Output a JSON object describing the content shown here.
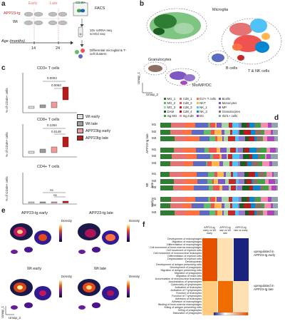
{
  "panels": {
    "a": "a",
    "b": "b",
    "c": "c",
    "d": "d",
    "e": "e",
    "f": "f"
  },
  "panel_a": {
    "early": "Early",
    "late": "Late",
    "app": "APP23-tg",
    "wt": "Wt",
    "age_label": "Age (months)",
    "age_14": "14",
    "age_24": "24",
    "facs_title": "FACS",
    "facs_badge": "CD45+",
    "seq": "10x scRNA seq scVDJ seq",
    "diff": "Differential microglial & T-cell clusters"
  },
  "panel_b": {
    "microglia": "Microglia",
    "granulocytes": "Granulocytes",
    "mo": "Mo/MP/DC",
    "bcells": "B cells",
    "tnk": "T & NK cells",
    "umap1": "Umap_1",
    "umap2": "Umap_2",
    "legend": [
      {
        "label": "MG_1",
        "color": "#2e7d32"
      },
      {
        "label": "Cd8_1",
        "color": "#e57373"
      },
      {
        "label": "Il17+ T cells",
        "color": "#ff7043"
      },
      {
        "label": "Bcells",
        "color": "#5c6bc0"
      },
      {
        "label": "MG_2",
        "color": "#66bb6a"
      },
      {
        "label": "Cd8_2",
        "color": "#ef5350"
      },
      {
        "label": "NKT",
        "color": "#ffb74d"
      },
      {
        "label": "Monocytes",
        "color": "#7e57c2"
      },
      {
        "label": "MG_3",
        "color": "#a5d6a7"
      },
      {
        "label": "Cd8_3",
        "color": "#c62828"
      },
      {
        "label": "NK_1",
        "color": "#4fc3f7"
      },
      {
        "label": "MP",
        "color": "#9575cd"
      },
      {
        "label": "DAM",
        "color": "#1b5e20"
      },
      {
        "label": "Cd8_4",
        "color": "#b71c1c"
      },
      {
        "label": "NK_2",
        "color": "#0288d1"
      },
      {
        "label": "Granulocytes",
        "color": "#8d6e63"
      },
      {
        "label": "Isg MG",
        "color": "#43a047"
      },
      {
        "label": "Isg Cd8",
        "color": "#f48fb1"
      },
      {
        "label": "DC",
        "color": "#ab47bc"
      },
      {
        "label": "Il1rl1+ cells",
        "color": "#90a4ae"
      }
    ]
  },
  "panel_c": {
    "title1": "CD3+ T cells",
    "title2": "CD8+ T cells",
    "title3": "CD4+ T cells",
    "ylabel": "% of CD45+ cells",
    "p1a": "0.0003",
    "p1b": "0.0063",
    "p2a": "0.1264",
    "p2b": "0.0148",
    "ns1": "ns",
    "ns2": "ns",
    "ticks1": [
      "0",
      "5",
      "10",
      "15",
      "20",
      "25"
    ],
    "ticks2": [
      "0",
      "5",
      "10",
      "15"
    ],
    "ticks3": [
      "0.000",
      "0.005",
      "0.010",
      "0.015"
    ],
    "legend": [
      {
        "label": "Wt early",
        "color": "#e0e0e0"
      },
      {
        "label": "Wt late",
        "color": "#9e9e9e"
      },
      {
        "label": "APP23tg early",
        "color": "#ef9a9a"
      },
      {
        "label": "APP23tg late",
        "color": "#b71c1c"
      }
    ]
  },
  "panel_d": {
    "group_app_late": "APP23-tg late",
    "group_app_early": "early",
    "group_wt_late": "late",
    "group_wt_early": "early",
    "wt": "Wt",
    "rows": [
      "M1",
      "M2",
      "M3",
      "M1",
      "M2",
      "M3",
      "M1",
      "M2",
      "M3",
      "M1",
      "M2",
      "M3"
    ]
  },
  "panel_e": {
    "app_early": "APP23-tg early",
    "app_late": "APP23-tg late",
    "wt_early": "Wt early",
    "wt_late": "Wt late",
    "density": "Density",
    "umap1": "Umap_1",
    "umap2": "Umap_2",
    "ticks_a": [
      "0.010",
      "0.005"
    ],
    "ticks_b": [
      "0.005",
      "0.004",
      "0.003",
      "0.002",
      "0.001"
    ],
    "ticks_c": [
      "0.0150",
      "0.0100",
      "0.0050",
      "0.0025"
    ],
    "ticks_d": [
      "0.005",
      "0.004",
      "0.003",
      "0.002"
    ]
  },
  "panel_f": {
    "col1": "APP23-tg early vs Wt early",
    "col2": "APP23-tg late vs Wt late",
    "col3": "APP23-tg late vs early",
    "upreg_early": "upregulated in APP23-tg early",
    "upreg_late": "upregulated in APP23-tg late",
    "scale": [
      "-1",
      "0",
      "1",
      "2"
    ],
    "terms": [
      "Development of macrophages",
      "Migration of macrophages",
      "Differentiation of macrophages",
      "Cell movement of bone-marrow macrophages",
      "Cell movement of myeloid cells",
      "Cell movement of mononuclear leukocytes",
      "Differentiation of myeloid cells",
      "Degranulation of myeloid cells",
      "Dendropoiesis",
      "Development of antigen presenting cells",
      "Development of phagocytes",
      "Migration of antigen presenting cells",
      "Migration of phagocytes",
      "Migration of mast cells",
      "Accumulation of mononuclear leukocytes",
      "Accumulation of lymphocytes",
      "Cytotoxicity of lymphocytes",
      "Activation of leukocytes",
      "Activation of T lymphocytes",
      "Function of leukocytes",
      "Function of T lymphocytes",
      "Adhesion of leukocytes",
      "Adhesion of macrophages",
      "Binding of bone-marrow macrophages",
      "Killing of antigen presenting cells",
      "Killing of phagocytes",
      "Maturation of phagocytes"
    ]
  }
}
